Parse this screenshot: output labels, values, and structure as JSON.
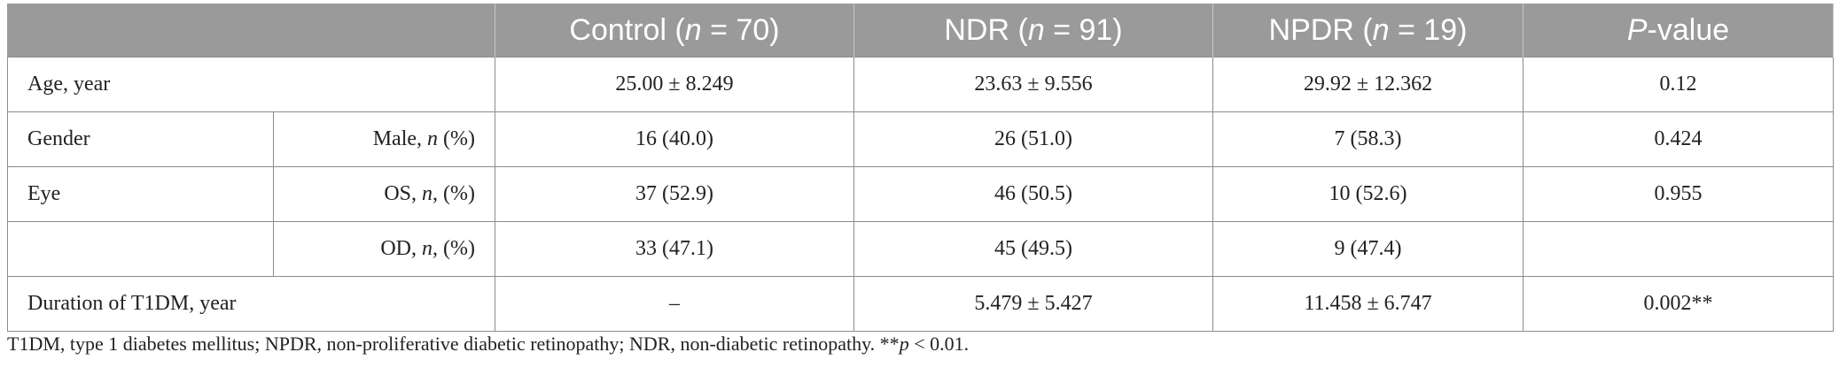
{
  "header": {
    "col_blank": "",
    "control_label": "Control (",
    "control_n": "n",
    "control_rest": " = 70)",
    "ndr_label": "NDR (",
    "ndr_n": "n",
    "ndr_rest": " = 91)",
    "npdr_label": "NPDR (",
    "npdr_n": "n",
    "npdr_rest": " = 19)",
    "p_label": "P",
    "p_rest": "-value"
  },
  "rows": {
    "age": {
      "label": "Age, year",
      "control": "25.00 ± 8.249",
      "ndr": "23.63 ± 9.556",
      "npdr": "29.92 ± 12.362",
      "p": "0.12"
    },
    "gender": {
      "label": "Gender",
      "sub_pre": "Male, ",
      "sub_n": "n",
      "sub_post": " (%)",
      "control": "16 (40.0)",
      "ndr": "26 (51.0)",
      "npdr": "7 (58.3)",
      "p": "0.424"
    },
    "eye_os": {
      "label": "Eye",
      "sub_pre": "OS, ",
      "sub_n": "n",
      "sub_post": ", (%)",
      "control": "37 (52.9)",
      "ndr": "46 (50.5)",
      "npdr": "10 (52.6)",
      "p": "0.955"
    },
    "eye_od": {
      "label": "",
      "sub_pre": "OD, ",
      "sub_n": "n",
      "sub_post": ", (%)",
      "control": "33 (47.1)",
      "ndr": "45 (49.5)",
      "npdr": "9 (47.4)",
      "p": ""
    },
    "duration": {
      "label": "Duration of T1DM, year",
      "control": "–",
      "ndr": "5.479 ± 5.427",
      "npdr": "11.458 ± 6.747",
      "p": "0.002**"
    }
  },
  "footnote": {
    "text": "T1DM, type 1 diabetes mellitus; NPDR, non-proliferative diabetic retinopathy; NDR, non-diabetic retinopathy. **",
    "p_italic": "p",
    "tail": " < 0.01."
  }
}
